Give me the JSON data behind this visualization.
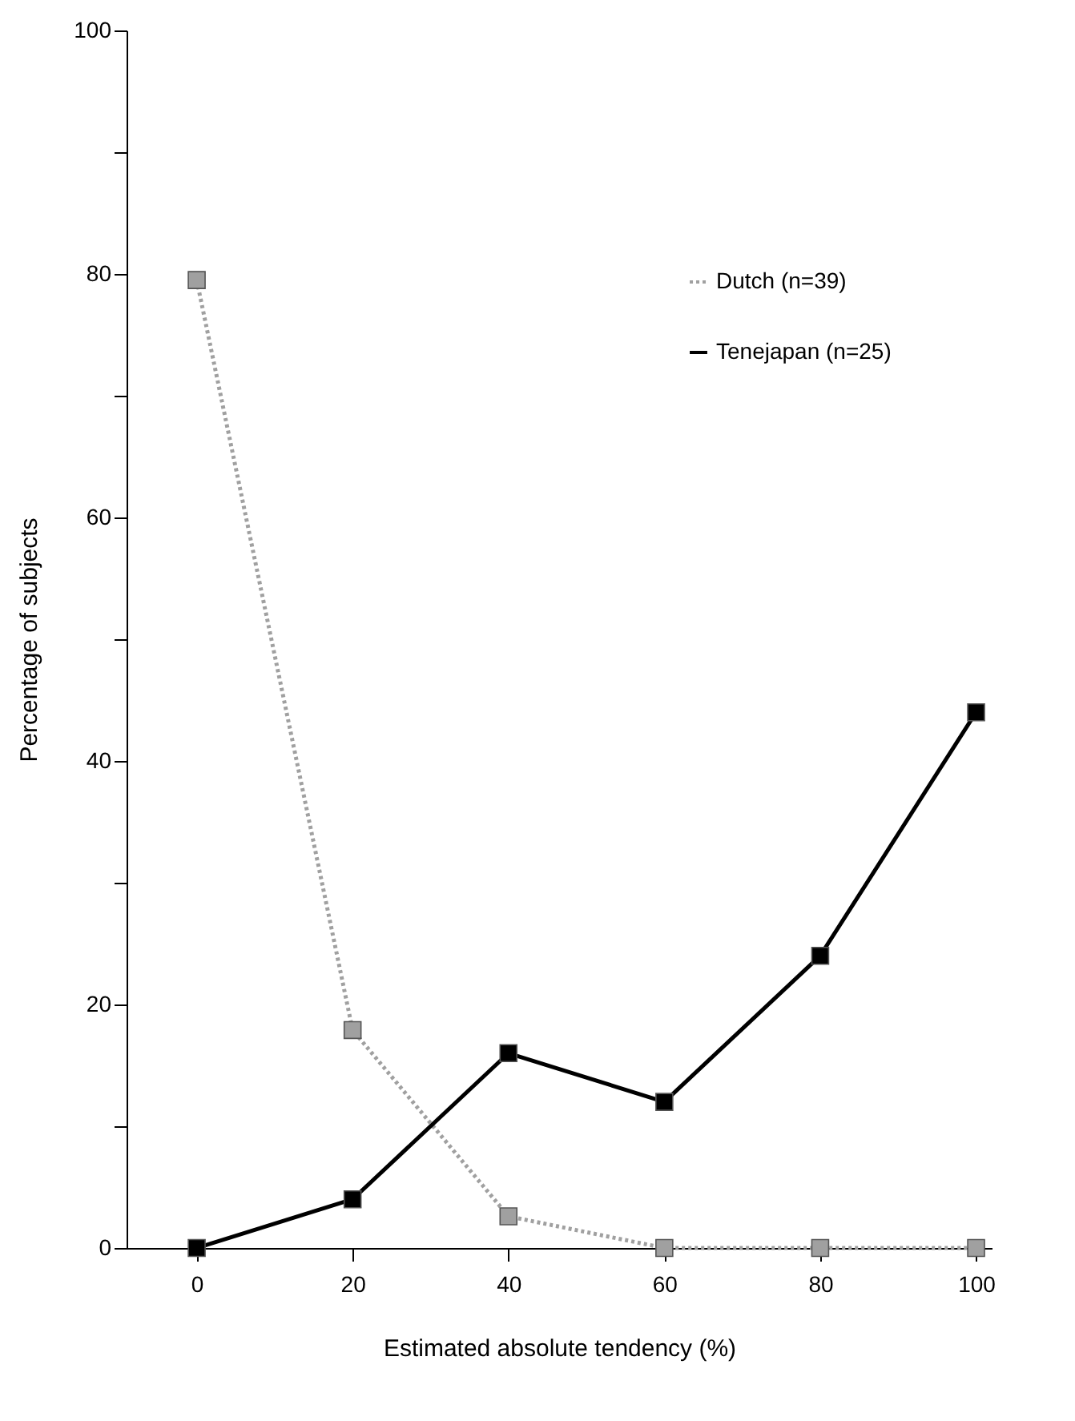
{
  "chart_data": {
    "type": "line",
    "xlabel": "Estimated absolute tendency (%)",
    "ylabel": "Percentage of subjects",
    "x": [
      0,
      20,
      40,
      60,
      80,
      100
    ],
    "series": [
      {
        "name": "Dutch (n=39)",
        "color": "#a0a0a0",
        "values": [
          79.5,
          17.9,
          2.6,
          0,
          0,
          0
        ],
        "line_style": "dotted"
      },
      {
        "name": "Tenejapan (n=25)",
        "color": "#000000",
        "values": [
          0,
          4,
          16,
          12,
          24,
          44
        ],
        "line_style": "solid"
      }
    ],
    "xlim": [
      -9,
      102
    ],
    "xticks": [
      0,
      20,
      40,
      60,
      80,
      100
    ],
    "ylim": [
      0,
      100
    ],
    "yticks": [
      0,
      {
        "value": 10,
        "label": null
      },
      20,
      {
        "value": 30,
        "label": null
      },
      40,
      {
        "value": 50,
        "label": null
      },
      60,
      {
        "value": 70,
        "label": null
      },
      80,
      {
        "value": 90,
        "label": null
      },
      100
    ],
    "grid": false,
    "legend": "top right",
    "marker": "square"
  }
}
